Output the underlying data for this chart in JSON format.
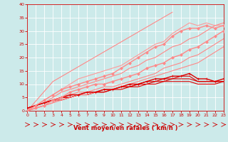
{
  "title": "",
  "xlabel": "Vent moyen/en rafales ( km/h )",
  "xlim": [
    0,
    23
  ],
  "ylim": [
    0,
    40
  ],
  "xticks": [
    0,
    1,
    2,
    3,
    4,
    5,
    6,
    7,
    8,
    9,
    10,
    11,
    12,
    13,
    14,
    15,
    16,
    17,
    18,
    19,
    20,
    21,
    22,
    23
  ],
  "yticks": [
    0,
    5,
    10,
    15,
    20,
    25,
    30,
    35,
    40
  ],
  "bg_color": "#cceaea",
  "grid_color": "#ffffff",
  "line_series": [
    {
      "x": [
        0,
        1,
        2,
        3,
        4,
        5,
        6,
        7,
        8,
        9,
        10,
        11,
        12,
        13,
        14,
        15,
        16,
        17,
        18,
        19,
        20,
        21,
        22,
        23
      ],
      "y": [
        1,
        2,
        3,
        4,
        5,
        5,
        6,
        6,
        7,
        7,
        8,
        8,
        9,
        9,
        10,
        10,
        11,
        11,
        11,
        11,
        10,
        10,
        10,
        11
      ],
      "color": "#dd0000",
      "lw": 0.8,
      "marker": null,
      "ms": 0
    },
    {
      "x": [
        0,
        1,
        2,
        3,
        4,
        5,
        6,
        7,
        8,
        9,
        10,
        11,
        12,
        13,
        14,
        15,
        16,
        17,
        18,
        19,
        20,
        21,
        22,
        23
      ],
      "y": [
        1,
        2,
        3,
        4,
        5,
        5,
        6,
        7,
        7,
        8,
        8,
        9,
        9,
        10,
        10,
        11,
        11,
        12,
        12,
        12,
        11,
        11,
        11,
        11
      ],
      "color": "#dd0000",
      "lw": 0.8,
      "marker": null,
      "ms": 0
    },
    {
      "x": [
        0,
        1,
        2,
        3,
        4,
        5,
        6,
        7,
        8,
        9,
        10,
        11,
        12,
        13,
        14,
        15,
        16,
        17,
        18,
        19,
        20,
        21,
        22,
        23
      ],
      "y": [
        1,
        2,
        3,
        4,
        5,
        6,
        6,
        7,
        7,
        8,
        8,
        9,
        10,
        10,
        11,
        12,
        12,
        13,
        13,
        14,
        12,
        12,
        11,
        12
      ],
      "color": "#dd0000",
      "lw": 1.0,
      "marker": "+",
      "ms": 3
    },
    {
      "x": [
        0,
        1,
        2,
        3,
        4,
        5,
        6,
        7,
        8,
        9,
        10,
        11,
        12,
        13,
        14,
        15,
        16,
        17,
        18,
        19,
        20,
        21,
        22,
        23
      ],
      "y": [
        1,
        2,
        3,
        4,
        4,
        5,
        6,
        6,
        7,
        7,
        8,
        9,
        9,
        10,
        11,
        11,
        12,
        12,
        13,
        13,
        11,
        11,
        11,
        11
      ],
      "color": "#dd0000",
      "lw": 0.8,
      "marker": null,
      "ms": 0
    },
    {
      "x": [
        0,
        1,
        2,
        3,
        4,
        5,
        6,
        7,
        8,
        9,
        10,
        11,
        12,
        13,
        14,
        15,
        16,
        17,
        18,
        19,
        20,
        21,
        22,
        23
      ],
      "y": [
        0,
        1,
        2,
        3,
        4,
        5,
        6,
        6,
        7,
        8,
        8,
        9,
        10,
        11,
        12,
        13,
        14,
        15,
        16,
        17,
        18,
        20,
        22,
        24
      ],
      "color": "#ff8888",
      "lw": 0.8,
      "marker": null,
      "ms": 0
    },
    {
      "x": [
        0,
        1,
        2,
        3,
        4,
        5,
        6,
        7,
        8,
        9,
        10,
        11,
        12,
        13,
        14,
        15,
        16,
        17,
        18,
        19,
        20,
        21,
        22,
        23
      ],
      "y": [
        0,
        1,
        2,
        3,
        5,
        6,
        7,
        7,
        8,
        9,
        9,
        10,
        11,
        12,
        13,
        14,
        16,
        17,
        18,
        20,
        21,
        23,
        25,
        27
      ],
      "color": "#ff8888",
      "lw": 0.8,
      "marker": null,
      "ms": 0
    },
    {
      "x": [
        0,
        1,
        2,
        3,
        4,
        5,
        6,
        7,
        8,
        9,
        10,
        11,
        12,
        13,
        14,
        15,
        16,
        17,
        18,
        19,
        20,
        21,
        22,
        23
      ],
      "y": [
        0,
        1,
        2,
        4,
        5,
        7,
        8,
        9,
        10,
        10,
        11,
        12,
        13,
        14,
        16,
        17,
        18,
        20,
        21,
        23,
        24,
        26,
        28,
        30
      ],
      "color": "#ff8888",
      "lw": 1.0,
      "marker": "D",
      "ms": 2
    },
    {
      "x": [
        0,
        1,
        2,
        3,
        4,
        5,
        6,
        7,
        8,
        9,
        10,
        11,
        12,
        13,
        14,
        15,
        16,
        17,
        18,
        19,
        20,
        21,
        22,
        23
      ],
      "y": [
        0,
        2,
        3,
        5,
        7,
        8,
        9,
        10,
        11,
        12,
        13,
        14,
        16,
        17,
        19,
        20,
        22,
        24,
        25,
        27,
        28,
        30,
        32,
        33
      ],
      "color": "#ff8888",
      "lw": 0.8,
      "marker": null,
      "ms": 0
    },
    {
      "x": [
        0,
        1,
        2,
        3,
        4,
        5,
        6,
        7,
        8,
        9,
        10,
        11,
        12,
        13,
        14,
        15,
        16,
        17,
        18,
        19,
        20,
        21,
        22,
        23
      ],
      "y": [
        0,
        2,
        4,
        6,
        8,
        9,
        10,
        11,
        12,
        13,
        14,
        16,
        18,
        20,
        22,
        24,
        25,
        28,
        30,
        31,
        31,
        32,
        31,
        32
      ],
      "color": "#ff8888",
      "lw": 1.0,
      "marker": "D",
      "ms": 2
    },
    {
      "x": [
        0,
        1,
        2,
        3,
        4,
        5,
        6,
        7,
        8,
        9,
        10,
        11,
        12,
        13,
        14,
        15,
        16,
        17,
        18,
        19,
        20,
        21,
        22,
        23
      ],
      "y": [
        0,
        2,
        4,
        6,
        8,
        10,
        12,
        13,
        14,
        15,
        16,
        17,
        19,
        21,
        23,
        25,
        26,
        29,
        31,
        33,
        32,
        33,
        32,
        32
      ],
      "color": "#ff9999",
      "lw": 0.8,
      "marker": null,
      "ms": 0
    },
    {
      "x": [
        0,
        3,
        17
      ],
      "y": [
        0,
        11,
        37
      ],
      "color": "#ff8888",
      "lw": 0.8,
      "marker": null,
      "ms": 0
    }
  ],
  "arrow_color": "#cc0000",
  "tick_color": "#cc0000",
  "label_color": "#cc0000",
  "spine_color": "#cc0000"
}
